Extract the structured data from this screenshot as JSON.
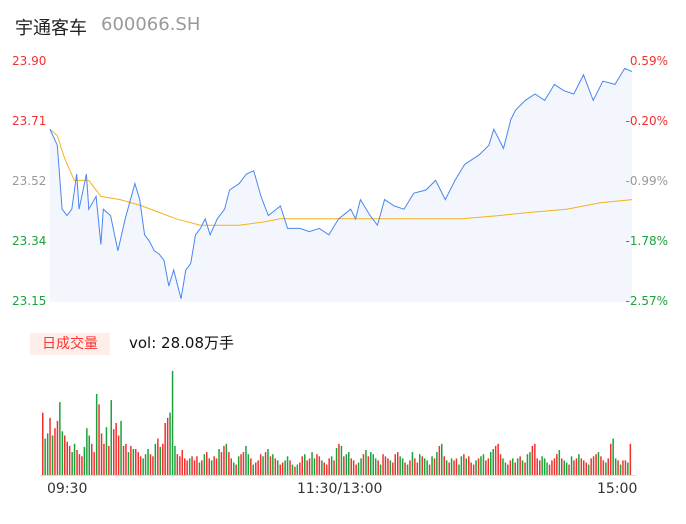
{
  "header": {
    "name": "宇通客车",
    "code": "600066.SH"
  },
  "volume_panel": {
    "badge": "日成交量",
    "vol_text": "vol: 28.08万手"
  },
  "colors": {
    "up": "#f23030",
    "down": "#1aa33a",
    "price": "#4a86f0",
    "avg": "#f5b21c",
    "flat": "#999999"
  },
  "chart_data": {
    "type": "line",
    "title": "宇通客车 600066.SH",
    "ylim": [
      23.15,
      23.9
    ],
    "y_ticks_left": [
      "23.90",
      "23.71",
      "23.52",
      "23.34",
      "23.15"
    ],
    "y_ticks_right": [
      "0.59%",
      "-0.20%",
      "-0.99%",
      "-1.78%",
      "-2.57%"
    ],
    "x_ticks": [
      "09:30",
      "11:30/13:00",
      "15:00"
    ],
    "x_range": [
      0,
      240
    ],
    "series": [
      {
        "name": "price",
        "points": [
          [
            0,
            23.69
          ],
          [
            3,
            23.64
          ],
          [
            5,
            23.44
          ],
          [
            7,
            23.42
          ],
          [
            9,
            23.44
          ],
          [
            11,
            23.55
          ],
          [
            12,
            23.44
          ],
          [
            15,
            23.55
          ],
          [
            16,
            23.44
          ],
          [
            19,
            23.48
          ],
          [
            21,
            23.33
          ],
          [
            22,
            23.44
          ],
          [
            25,
            23.42
          ],
          [
            28,
            23.31
          ],
          [
            31,
            23.41
          ],
          [
            35,
            23.52
          ],
          [
            37,
            23.47
          ],
          [
            39,
            23.36
          ],
          [
            41,
            23.34
          ],
          [
            43,
            23.31
          ],
          [
            45,
            23.3
          ],
          [
            47,
            23.28
          ],
          [
            49,
            23.2
          ],
          [
            51,
            23.25
          ],
          [
            54,
            23.16
          ],
          [
            56,
            23.25
          ],
          [
            58,
            23.27
          ],
          [
            60,
            23.36
          ],
          [
            62,
            23.38
          ],
          [
            64,
            23.41
          ],
          [
            66,
            23.36
          ],
          [
            69,
            23.41
          ],
          [
            72,
            23.44
          ],
          [
            74,
            23.5
          ],
          [
            78,
            23.52
          ],
          [
            81,
            23.55
          ],
          [
            84,
            23.56
          ],
          [
            87,
            23.48
          ],
          [
            90,
            23.42
          ],
          [
            95,
            23.45
          ],
          [
            98,
            23.38
          ],
          [
            103,
            23.38
          ],
          [
            107,
            23.37
          ],
          [
            111,
            23.38
          ],
          [
            115,
            23.36
          ],
          [
            119,
            23.41
          ],
          [
            124,
            23.44
          ],
          [
            126,
            23.41
          ],
          [
            128,
            23.47
          ],
          [
            132,
            23.42
          ],
          [
            135,
            23.39
          ],
          [
            138,
            23.47
          ],
          [
            142,
            23.45
          ],
          [
            146,
            23.44
          ],
          [
            150,
            23.49
          ],
          [
            155,
            23.5
          ],
          [
            159,
            23.53
          ],
          [
            163,
            23.47
          ],
          [
            167,
            23.53
          ],
          [
            171,
            23.58
          ],
          [
            173,
            23.59
          ],
          [
            177,
            23.61
          ],
          [
            181,
            23.64
          ],
          [
            183,
            23.69
          ],
          [
            187,
            23.63
          ],
          [
            190,
            23.72
          ],
          [
            192,
            23.75
          ],
          [
            196,
            23.78
          ],
          [
            200,
            23.8
          ],
          [
            204,
            23.78
          ],
          [
            208,
            23.83
          ],
          [
            212,
            23.81
          ],
          [
            216,
            23.8
          ],
          [
            220,
            23.86
          ],
          [
            224,
            23.78
          ],
          [
            228,
            23.84
          ],
          [
            233,
            23.83
          ],
          [
            237,
            23.88
          ],
          [
            240,
            23.87
          ]
        ]
      },
      {
        "name": "avg",
        "points": [
          [
            0,
            23.69
          ],
          [
            3,
            23.67
          ],
          [
            6,
            23.6
          ],
          [
            10,
            23.53
          ],
          [
            16,
            23.53
          ],
          [
            21,
            23.48
          ],
          [
            29,
            23.47
          ],
          [
            38,
            23.45
          ],
          [
            45,
            23.43
          ],
          [
            52,
            23.41
          ],
          [
            62,
            23.39
          ],
          [
            78,
            23.39
          ],
          [
            88,
            23.4
          ],
          [
            95,
            23.41
          ],
          [
            130,
            23.41
          ],
          [
            170,
            23.41
          ],
          [
            185,
            23.42
          ],
          [
            198,
            23.43
          ],
          [
            213,
            23.44
          ],
          [
            227,
            23.46
          ],
          [
            240,
            23.47
          ]
        ]
      }
    ],
    "volume": {
      "values": [
        60,
        35,
        40,
        55,
        38,
        45,
        52,
        70,
        42,
        38,
        32,
        28,
        22,
        30,
        24,
        20,
        18,
        27,
        45,
        38,
        30,
        22,
        78,
        68,
        40,
        30,
        46,
        28,
        72,
        44,
        50,
        38,
        52,
        28,
        30,
        22,
        28,
        25,
        25,
        22,
        18,
        16,
        20,
        25,
        20,
        18,
        30,
        35,
        27,
        30,
        50,
        55,
        60,
        100,
        28,
        20,
        18,
        24,
        16,
        14,
        16,
        18,
        14,
        18,
        12,
        14,
        20,
        22,
        16,
        14,
        18,
        16,
        25,
        22,
        28,
        30,
        22,
        16,
        12,
        10,
        18,
        20,
        22,
        28,
        20,
        16,
        10,
        12,
        14,
        20,
        18,
        22,
        25,
        18,
        20,
        16,
        14,
        10,
        12,
        14,
        18,
        14,
        10,
        8,
        10,
        12,
        18,
        20,
        14,
        16,
        22,
        16,
        20,
        18,
        14,
        12,
        10,
        16,
        18,
        14,
        26,
        30,
        28,
        18,
        20,
        22,
        16,
        14,
        10,
        12,
        16,
        20,
        24,
        18,
        22,
        20,
        16,
        14,
        10,
        20,
        18,
        16,
        14,
        12,
        20,
        22,
        18,
        16,
        12,
        10,
        14,
        22,
        16,
        12,
        20,
        18,
        16,
        14,
        10,
        18,
        16,
        22,
        28,
        30,
        18,
        14,
        12,
        16,
        14,
        16,
        10,
        18,
        20,
        16,
        18,
        12,
        10,
        14,
        16,
        18,
        20,
        14,
        16,
        22,
        25,
        28,
        30,
        20,
        16,
        12,
        10,
        14,
        16,
        12,
        16,
        18,
        14,
        12,
        20,
        22,
        28,
        30,
        16,
        14,
        18,
        16,
        12,
        10,
        14,
        16,
        20,
        24,
        16,
        14,
        12,
        10,
        18,
        14,
        16,
        20,
        16,
        14,
        12,
        10,
        16,
        18,
        20,
        22,
        18,
        14,
        12,
        16,
        30,
        35,
        16,
        14,
        10,
        14,
        14,
        12,
        30
      ],
      "directions": "rggrgrrggrrrggrrrgggrrgrrrgrgrrrgrrgrgrrrgggrrgrgrrrgggrrrrrgrrrgrgrrgrrgrrgrrgrgrrggrgrrrgrgrgrgrrggrgrgrrgrrggrrgrrrgrgrgrggrrrggrgrgggrgrrrgrrrggrgrgrrgrggrgrgrgrgrgrrggrgrrrgrggrrggrrrggrrgrgrgrggrrrrgggrrrrgrggrgrrgrrrgrrrgrrgrrggrgrrgrrrggrrgrrrrrggrrrgrrrgrrr"
    }
  }
}
